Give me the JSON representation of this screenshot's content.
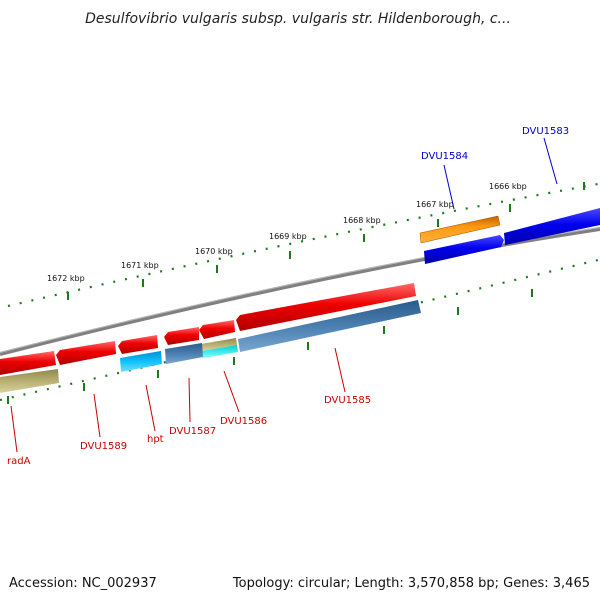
{
  "title": "Desulfovibrio vulgaris subsp. vulgaris str. Hildenborough, c...",
  "footer": {
    "accession": "Accession: NC_002937",
    "summary": "Topology: circular; Length: 3,570,858 bp; Genes: 3,465"
  },
  "kbp_labels": [
    "1666 kbp",
    "1667 kbp",
    "1668 kbp",
    "1669 kbp",
    "1670 kbp",
    "1671 kbp",
    "1672 kbp"
  ],
  "genes_forward": [
    {
      "label": "DVU1583",
      "color": "#0000cc"
    },
    {
      "label": "DVU1584",
      "color": "#0000cc"
    }
  ],
  "genes_reverse": [
    {
      "label": "DVU1585",
      "color": "#cc0000"
    },
    {
      "label": "DVU1586",
      "color": "#cc0000"
    },
    {
      "label": "DVU1587",
      "color": "#cc0000"
    },
    {
      "label": "hpt",
      "color": "#cc0000"
    },
    {
      "label": "DVU1589",
      "color": "#cc0000"
    },
    {
      "label": "radA",
      "color": "#cc0000"
    }
  ],
  "colors": {
    "forward_cds": "#0000ee",
    "forward_gene": "#ff8c00",
    "reverse_cds": "#ee0000",
    "reverse_feature_blue": "#4a7fb0",
    "reverse_feature_cyan": "#00b8f0",
    "reverse_feature_khaki": "#b8b070",
    "backbone": "#888888",
    "tick": "#1a7a1a"
  }
}
